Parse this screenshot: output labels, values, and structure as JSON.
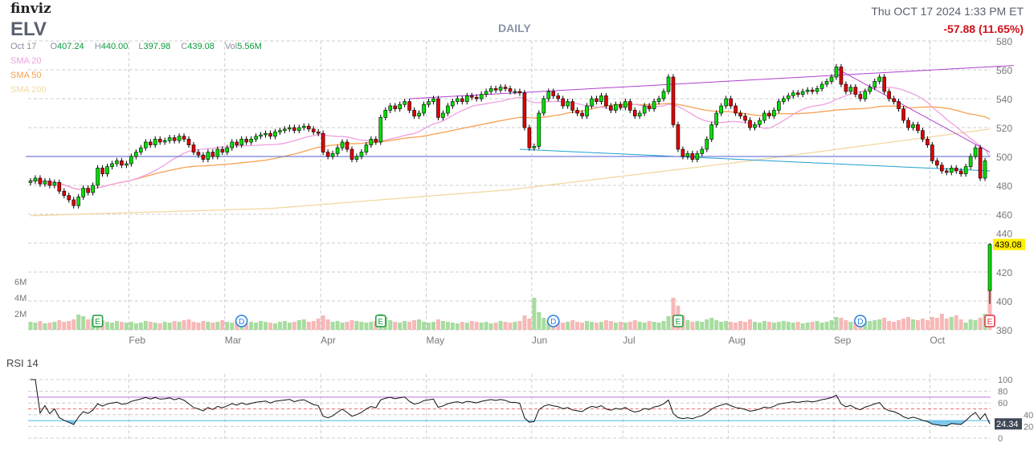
{
  "header": {
    "logo": "finviz",
    "ticker": "ELV",
    "period": "DAILY",
    "datetime": "Thu OCT 17 2024 1:33 PM ET",
    "change": "-57.88 (11.65%)"
  },
  "ohlc": {
    "date": "Oct 17",
    "o_label": "O",
    "open": "407.24",
    "h_label": "H",
    "high": "440.00",
    "l_label": "L",
    "low": "397.98",
    "c_label": "C",
    "close": "439.08",
    "vol_label": "Vol",
    "volume": "5.56M"
  },
  "legend": [
    {
      "label": "SMA 20",
      "color": "#f0a0e0"
    },
    {
      "label": "SMA 50",
      "color": "#f7a050"
    },
    {
      "label": "SMA 200",
      "color": "#f2d8a0"
    }
  ],
  "rsi_label": "RSI 14",
  "rsi_last": "24.34",
  "last_price_label": "439.08",
  "colors": {
    "up": "#00e000",
    "down": "#e00000",
    "vol_up": "#a8dca0",
    "vol_down": "#f7b8b8",
    "grid": "#cccccc"
  },
  "chart_data": {
    "type": "candlestick",
    "title": "ELV DAILY",
    "price_ylim": [
      380,
      580
    ],
    "price_ticks": [
      580,
      560,
      540,
      520,
      500,
      480,
      460,
      440,
      420,
      400,
      380
    ],
    "volume_ticks": [
      "6M",
      "4M",
      "2M"
    ],
    "volume_tick_values": [
      6,
      4,
      2
    ],
    "rsi_ticks": [
      100,
      80,
      60,
      40,
      20,
      0
    ],
    "rsi_levels": {
      "overbought": 70,
      "mid": 50,
      "oversold": 30
    },
    "months": [
      {
        "label": "Feb",
        "index": 21
      },
      {
        "label": "Mar",
        "index": 41
      },
      {
        "label": "Apr",
        "index": 61
      },
      {
        "label": "May",
        "index": 83
      },
      {
        "label": "Jun",
        "index": 105
      },
      {
        "label": "Jul",
        "index": 124
      },
      {
        "label": "Aug",
        "index": 146
      },
      {
        "label": "Sep",
        "index": 168
      },
      {
        "label": "Oct",
        "index": 188
      }
    ],
    "first_open": 482,
    "close": [
      483,
      485,
      481,
      483,
      480,
      482,
      476,
      473,
      470,
      466,
      472,
      478,
      475,
      480,
      492,
      488,
      493,
      495,
      497,
      494,
      495,
      500,
      503,
      506,
      510,
      508,
      512,
      510,
      511,
      513,
      511,
      514,
      512,
      508,
      503,
      501,
      498,
      503,
      500,
      505,
      503,
      506,
      510,
      508,
      512,
      510,
      512,
      514,
      515,
      516,
      514,
      517,
      518,
      519,
      520,
      518,
      520,
      521,
      519,
      517,
      516,
      503,
      500,
      502,
      506,
      510,
      505,
      498,
      500,
      503,
      508,
      512,
      510,
      527,
      532,
      535,
      533,
      536,
      538,
      532,
      528,
      530,
      536,
      538,
      540,
      527,
      530,
      535,
      538,
      540,
      538,
      542,
      541,
      540,
      543,
      545,
      547,
      546,
      548,
      547,
      545,
      545,
      544,
      520,
      506,
      507,
      530,
      540,
      545,
      542,
      540,
      535,
      538,
      532,
      530,
      528,
      535,
      540,
      538,
      542,
      535,
      532,
      536,
      534,
      538,
      532,
      528,
      530,
      535,
      533,
      538,
      540,
      545,
      555,
      522,
      505,
      500,
      502,
      498,
      502,
      505,
      512,
      522,
      530,
      535,
      540,
      535,
      530,
      528,
      525,
      520,
      522,
      525,
      530,
      528,
      532,
      538,
      540,
      542,
      544,
      543,
      545,
      546,
      545,
      547,
      550,
      552,
      555,
      562,
      550,
      545,
      548,
      543,
      540,
      545,
      548,
      552,
      555,
      545,
      540,
      538,
      533,
      525,
      520,
      522,
      518,
      512,
      508,
      497,
      494,
      490,
      489,
      492,
      490,
      488,
      493,
      500,
      506,
      485,
      496.96,
      439.08
    ],
    "last_candle": {
      "open": 407.24,
      "high": 440.0,
      "low": 397.98,
      "close": 439.08
    },
    "volume_m": [
      1.0,
      0.9,
      1.1,
      0.8,
      0.9,
      1.0,
      1.2,
      1.0,
      1.1,
      1.3,
      1.9,
      1.7,
      1.3,
      1.4,
      1.8,
      1.2,
      1.0,
      0.9,
      1.1,
      1.0,
      0.9,
      1.0,
      0.8,
      0.9,
      1.1,
      1.0,
      0.9,
      0.8,
      1.0,
      0.9,
      1.1,
      1.0,
      1.2,
      1.3,
      1.0,
      0.9,
      1.1,
      1.0,
      0.9,
      1.0,
      1.2,
      1.0,
      0.9,
      1.1,
      1.0,
      0.8,
      1.0,
      0.9,
      1.1,
      1.0,
      0.9,
      0.8,
      1.0,
      1.1,
      0.9,
      1.0,
      1.2,
      1.3,
      1.0,
      1.1,
      1.4,
      1.8,
      1.3,
      1.0,
      1.1,
      0.9,
      1.0,
      1.2,
      1.1,
      1.0,
      0.9,
      1.0,
      1.1,
      2.0,
      1.6,
      1.2,
      1.0,
      0.9,
      1.1,
      1.0,
      1.2,
      1.3,
      1.0,
      0.9,
      1.0,
      1.3,
      1.1,
      1.0,
      0.9,
      0.8,
      1.0,
      0.9,
      1.1,
      1.0,
      0.9,
      1.0,
      0.8,
      0.9,
      1.1,
      1.0,
      0.9,
      1.0,
      1.1,
      1.8,
      1.4,
      4.0,
      2.2,
      1.5,
      1.2,
      1.0,
      1.1,
      0.9,
      1.0,
      1.2,
      1.0,
      0.9,
      1.1,
      1.0,
      0.9,
      1.0,
      1.2,
      1.1,
      0.9,
      1.0,
      0.9,
      1.0,
      1.2,
      1.0,
      0.9,
      1.1,
      1.0,
      0.9,
      1.1,
      1.7,
      4.0,
      3.0,
      1.8,
      1.2,
      1.0,
      1.1,
      1.0,
      1.3,
      1.5,
      1.2,
      1.0,
      1.1,
      1.0,
      0.9,
      1.1,
      1.0,
      1.3,
      1.0,
      0.9,
      1.1,
      1.0,
      0.9,
      1.0,
      1.1,
      1.0,
      0.9,
      1.0,
      0.8,
      0.9,
      1.0,
      1.1,
      0.9,
      1.0,
      1.2,
      1.6,
      1.5,
      1.2,
      1.0,
      1.1,
      0.9,
      1.0,
      1.1,
      1.2,
      1.3,
      1.5,
      1.1,
      1.0,
      1.2,
      1.4,
      1.6,
      1.3,
      1.2,
      1.4,
      1.2,
      1.6,
      1.5,
      2.0,
      1.4,
      1.6,
      1.8,
      1.3,
      0.9,
      1.3,
      1.2,
      1.5,
      2.0,
      5.56
    ],
    "sma200_anchors": [
      [
        0,
        459
      ],
      [
        50,
        464
      ],
      [
        100,
        477
      ],
      [
        150,
        497
      ],
      [
        200,
        519
      ]
    ],
    "trendlines": [
      {
        "name": "resistance-trendline",
        "color": "#b040d0",
        "points": [
          [
            79,
            540
          ],
          [
            205,
            563
          ]
        ]
      },
      {
        "name": "support-trendline",
        "color": "#20a0d0",
        "points": [
          [
            102,
            505
          ],
          [
            200,
            490
          ]
        ]
      },
      {
        "name": "horizontal-level-500",
        "color": "#5060d0",
        "points": [
          [
            -1,
            500
          ],
          [
            200,
            500
          ]
        ]
      },
      {
        "name": "downtrend-line",
        "color": "#b040d0",
        "points": [
          [
            168,
            561
          ],
          [
            200,
            503
          ]
        ]
      }
    ],
    "earnings_markers": [
      14,
      73,
      135,
      200
    ],
    "dividend_markers": [
      44,
      109,
      173
    ],
    "earnings_label": "E",
    "dividend_label": "D"
  }
}
